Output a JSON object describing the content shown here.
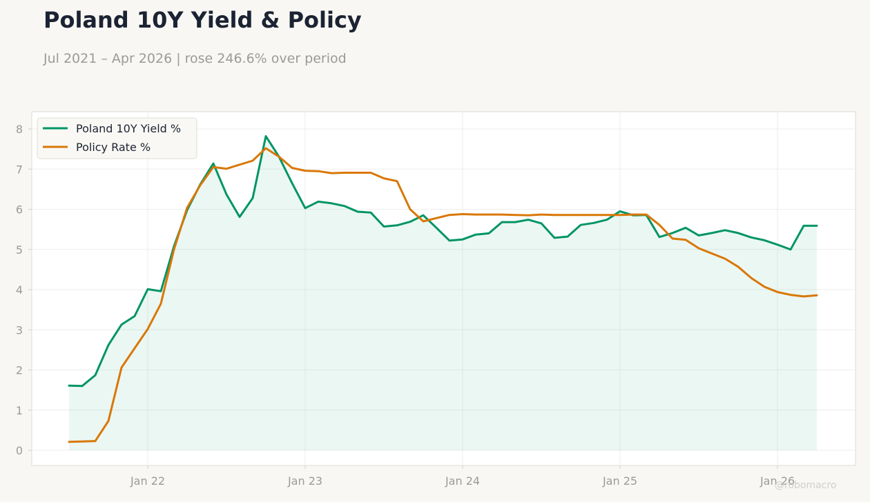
{
  "header": {
    "title": "Poland 10Y Yield & Policy",
    "subtitle": "Jul 2021 – Apr 2026 | rose 246.6% over period"
  },
  "watermark": "@robomacro",
  "colors": {
    "background": "#f8f7f3",
    "plot_background": "#ffffff",
    "yield": "#009466",
    "policy": "#d97706",
    "grid": "#eeeeee",
    "axis_text": "#9a9a96"
  },
  "chart_data": {
    "type": "line",
    "title": "Poland 10Y Yield & Policy",
    "subtitle": "Jul 2021 – Apr 2026 | rose 246.6% over period",
    "xlabel": "",
    "ylabel": "",
    "x_start": "2021-07",
    "x_end": "2026-04",
    "frequency": "monthly",
    "ylim": [
      -0.6,
      8.45
    ],
    "yticks": [
      0,
      1,
      2,
      3,
      4,
      5,
      6,
      7,
      8
    ],
    "xticks": [
      {
        "date": "2022-01",
        "label": "Jan 22"
      },
      {
        "date": "2023-01",
        "label": "Jan 23"
      },
      {
        "date": "2024-01",
        "label": "Jan 24"
      },
      {
        "date": "2025-01",
        "label": "Jan 25"
      },
      {
        "date": "2026-01",
        "label": "Jan 26"
      }
    ],
    "grid": true,
    "legend_position": "top-left",
    "series": [
      {
        "name": "Poland 10Y Yield %",
        "color": "#009466",
        "fill_area": true,
        "values": [
          1.61,
          1.6,
          1.87,
          2.62,
          3.13,
          3.34,
          4.01,
          3.96,
          5.08,
          5.98,
          6.62,
          7.14,
          6.37,
          5.81,
          6.28,
          7.82,
          7.31,
          6.65,
          6.03,
          6.19,
          6.15,
          6.08,
          5.94,
          5.92,
          5.57,
          5.6,
          5.69,
          5.85,
          5.54,
          5.22,
          5.25,
          5.37,
          5.4,
          5.68,
          5.68,
          5.74,
          5.65,
          5.29,
          5.32,
          5.61,
          5.66,
          5.74,
          5.95,
          5.85,
          5.86,
          5.31,
          5.41,
          5.54,
          5.35,
          5.41,
          5.48,
          5.41,
          5.3,
          5.23,
          5.12,
          5.0,
          5.59,
          5.59
        ]
      },
      {
        "name": "Policy Rate %",
        "color": "#d97706",
        "fill_area": false,
        "values": [
          0.21,
          0.22,
          0.23,
          0.73,
          2.06,
          2.54,
          3.02,
          3.65,
          5.0,
          6.04,
          6.6,
          7.05,
          7.01,
          7.11,
          7.21,
          7.52,
          7.31,
          7.03,
          6.96,
          6.95,
          6.9,
          6.91,
          6.91,
          6.91,
          6.77,
          6.7,
          6.0,
          5.7,
          5.78,
          5.86,
          5.88,
          5.87,
          5.87,
          5.87,
          5.86,
          5.85,
          5.87,
          5.86,
          5.86,
          5.86,
          5.86,
          5.86,
          5.86,
          5.87,
          5.87,
          5.61,
          5.27,
          5.24,
          5.03,
          4.9,
          4.77,
          4.57,
          4.29,
          4.07,
          3.94,
          3.87,
          3.83,
          3.86
        ]
      }
    ]
  }
}
